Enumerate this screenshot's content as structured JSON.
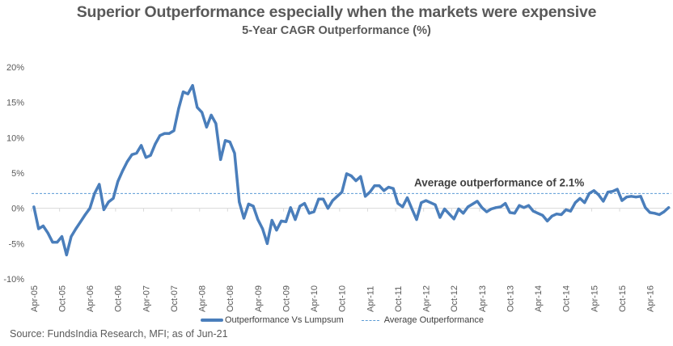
{
  "chart_data": {
    "type": "line",
    "title": "Superior Outperformance especially when the markets were expensive",
    "subtitle": "5-Year CAGR Outperformance (%)",
    "xlabel": "",
    "ylabel": "",
    "ylim": [
      -10,
      20
    ],
    "yticks": [
      20,
      15,
      10,
      5,
      0,
      -5,
      -10
    ],
    "ytick_labels": [
      "20%",
      "15%",
      "10%",
      "5%",
      "0%",
      "-5%",
      "-10%"
    ],
    "x_start": "Apr-05",
    "x_frequency": "monthly",
    "xtick_labels": [
      "Apr-05",
      "Oct-05",
      "Apr-06",
      "Oct-06",
      "Apr-07",
      "Oct-07",
      "Apr-08",
      "Oct-08",
      "Apr-09",
      "Oct-09",
      "Apr-10",
      "Oct-10",
      "Apr-11",
      "Oct-11",
      "Apr-12",
      "Oct-12",
      "Apr-13",
      "Oct-13",
      "Apr-14",
      "Oct-14",
      "Apr-15",
      "Oct-15",
      "Apr-16"
    ],
    "xtick_every_months": 6,
    "grid": false,
    "legend_position": "bottom",
    "series": [
      {
        "name": "Outperformance Vs Lumpsum",
        "color": "#4a7ebb",
        "style": "solid",
        "values": [
          0.2,
          -2.9,
          -2.5,
          -3.5,
          -4.8,
          -4.8,
          -4.0,
          -6.6,
          -4.0,
          -2.9,
          -1.9,
          -0.9,
          0.0,
          2.1,
          3.4,
          -0.2,
          0.9,
          1.4,
          3.8,
          5.3,
          6.6,
          7.6,
          7.8,
          8.9,
          7.2,
          7.5,
          9.1,
          10.3,
          10.6,
          10.6,
          11.0,
          14.1,
          16.5,
          16.2,
          17.4,
          14.3,
          13.6,
          11.5,
          13.2,
          12.0,
          6.9,
          9.6,
          9.4,
          7.8,
          0.9,
          -1.4,
          0.6,
          0.3,
          -1.6,
          -2.9,
          -5.0,
          -1.7,
          -3.1,
          -1.8,
          -1.9,
          0.1,
          -1.6,
          0.3,
          0.7,
          -0.7,
          -0.5,
          1.3,
          1.3,
          0.0,
          1.1,
          1.7,
          2.3,
          4.9,
          4.6,
          3.9,
          4.5,
          1.7,
          2.3,
          3.2,
          3.2,
          2.5,
          3.0,
          2.8,
          0.7,
          0.2,
          1.5,
          -0.1,
          -1.6,
          0.8,
          1.1,
          0.8,
          0.5,
          -1.3,
          -0.1,
          -0.8,
          -1.5,
          -0.1,
          -0.7,
          0.2,
          0.6,
          1.0,
          0.1,
          -0.5,
          -0.1,
          0.1,
          0.2,
          0.7,
          -0.6,
          -0.7,
          0.4,
          0.1,
          0.4,
          -0.4,
          -0.7,
          -1.0,
          -1.8,
          -1.1,
          -0.8,
          -0.9,
          -0.2,
          -0.4,
          0.8,
          1.4,
          0.8,
          2.1,
          2.5,
          1.9,
          1.0,
          2.3,
          2.4,
          2.7,
          1.1,
          1.6,
          1.7,
          1.6,
          1.7,
          0.1,
          -0.6,
          -0.7,
          -0.9,
          -0.5,
          0.1
        ]
      },
      {
        "name": "Average Outperformance",
        "color": "#5b9bd5",
        "style": "dashed",
        "constant": 2.1
      }
    ],
    "annotations": [
      {
        "text": "Average outperformance of 2.1%",
        "anchor_value": 2.1
      }
    ]
  },
  "source": "Source: FundsIndia Research, MFI; as of Jun-21"
}
